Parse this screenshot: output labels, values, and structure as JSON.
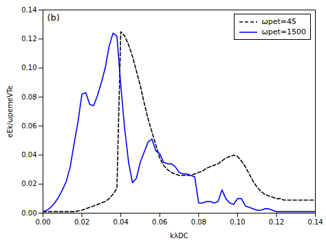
{
  "chart_data": {
    "type": "line",
    "xlabel": "kλDC",
    "ylabel": "eEk/ωpemeVTe",
    "annotation": "(b)",
    "legend": "upper right",
    "grid": false,
    "xlim": [
      0.0,
      0.14
    ],
    "ylim": [
      0.0,
      0.14
    ],
    "xticks": [
      {
        "value": 0.0,
        "label": "0.00"
      },
      0.02,
      0.04,
      0.06,
      0.08,
      {
        "value": 0.1,
        "label": "0.10"
      },
      0.12,
      0.14
    ],
    "yticks": [
      {
        "value": 0.0,
        "label": "0.00"
      },
      0.02,
      0.04,
      0.06,
      0.08,
      {
        "value": 0.1,
        "label": "0.10"
      },
      0.12,
      0.14
    ],
    "series": [
      {
        "name": "ωpet=45",
        "color": "black",
        "line_style": "dashed",
        "x": [
          0.0,
          0.004,
          0.008,
          0.012,
          0.016,
          0.02,
          0.022,
          0.024,
          0.026,
          0.028,
          0.03,
          0.032,
          0.034,
          0.036,
          0.038,
          0.04,
          0.042,
          0.044,
          0.046,
          0.048,
          0.05,
          0.052,
          0.054,
          0.056,
          0.058,
          0.06,
          0.062,
          0.064,
          0.066,
          0.068,
          0.07,
          0.072,
          0.074,
          0.076,
          0.078,
          0.08,
          0.082,
          0.084,
          0.086,
          0.088,
          0.09,
          0.092,
          0.094,
          0.096,
          0.098,
          0.1,
          0.102,
          0.104,
          0.106,
          0.108,
          0.11,
          0.112,
          0.114,
          0.116,
          0.118,
          0.12,
          0.122,
          0.124,
          0.126,
          0.128,
          0.13,
          0.132,
          0.134,
          0.136,
          0.138,
          0.14
        ],
        "values": [
          0.001,
          0.001,
          0.001,
          0.001,
          0.001,
          0.002,
          0.003,
          0.004,
          0.005,
          0.006,
          0.007,
          0.008,
          0.01,
          0.013,
          0.017,
          0.125,
          0.122,
          0.116,
          0.108,
          0.098,
          0.088,
          0.076,
          0.065,
          0.056,
          0.047,
          0.038,
          0.033,
          0.03,
          0.028,
          0.027,
          0.026,
          0.026,
          0.026,
          0.026,
          0.027,
          0.028,
          0.029,
          0.031,
          0.032,
          0.033,
          0.034,
          0.036,
          0.038,
          0.039,
          0.04,
          0.039,
          0.036,
          0.032,
          0.027,
          0.022,
          0.018,
          0.015,
          0.013,
          0.012,
          0.011,
          0.01,
          0.01,
          0.009,
          0.009,
          0.009,
          0.009,
          0.009,
          0.009,
          0.009,
          0.009,
          0.009
        ]
      },
      {
        "name": "ωpet=1500",
        "color": "blue",
        "line_style": "solid",
        "x": [
          0.0,
          0.002,
          0.004,
          0.006,
          0.008,
          0.01,
          0.012,
          0.014,
          0.016,
          0.018,
          0.02,
          0.022,
          0.024,
          0.026,
          0.028,
          0.03,
          0.032,
          0.034,
          0.036,
          0.038,
          0.04,
          0.042,
          0.044,
          0.046,
          0.048,
          0.05,
          0.052,
          0.054,
          0.056,
          0.058,
          0.06,
          0.062,
          0.064,
          0.066,
          0.068,
          0.07,
          0.072,
          0.074,
          0.076,
          0.078,
          0.08,
          0.082,
          0.084,
          0.086,
          0.088,
          0.09,
          0.092,
          0.094,
          0.096,
          0.098,
          0.1,
          0.102,
          0.104,
          0.106,
          0.108,
          0.11,
          0.112,
          0.114,
          0.116,
          0.118,
          0.12,
          0.122,
          0.124,
          0.126,
          0.128,
          0.13,
          0.132,
          0.134,
          0.136,
          0.138,
          0.14
        ],
        "values": [
          0.001,
          0.002,
          0.004,
          0.007,
          0.011,
          0.016,
          0.022,
          0.032,
          0.048,
          0.063,
          0.082,
          0.083,
          0.075,
          0.074,
          0.081,
          0.09,
          0.1,
          0.115,
          0.124,
          0.122,
          0.088,
          0.058,
          0.035,
          0.021,
          0.024,
          0.035,
          0.042,
          0.049,
          0.051,
          0.043,
          0.041,
          0.035,
          0.034,
          0.034,
          0.032,
          0.028,
          0.027,
          0.027,
          0.026,
          0.025,
          0.007,
          0.007,
          0.008,
          0.008,
          0.007,
          0.008,
          0.016,
          0.01,
          0.007,
          0.006,
          0.01,
          0.01,
          0.005,
          0.004,
          0.003,
          0.002,
          0.002,
          0.003,
          0.003,
          0.002,
          0.001,
          0.001,
          0.001,
          0.001,
          0.001,
          0.001,
          0.001,
          0.001,
          0.001,
          0.001,
          0.001
        ]
      }
    ]
  }
}
